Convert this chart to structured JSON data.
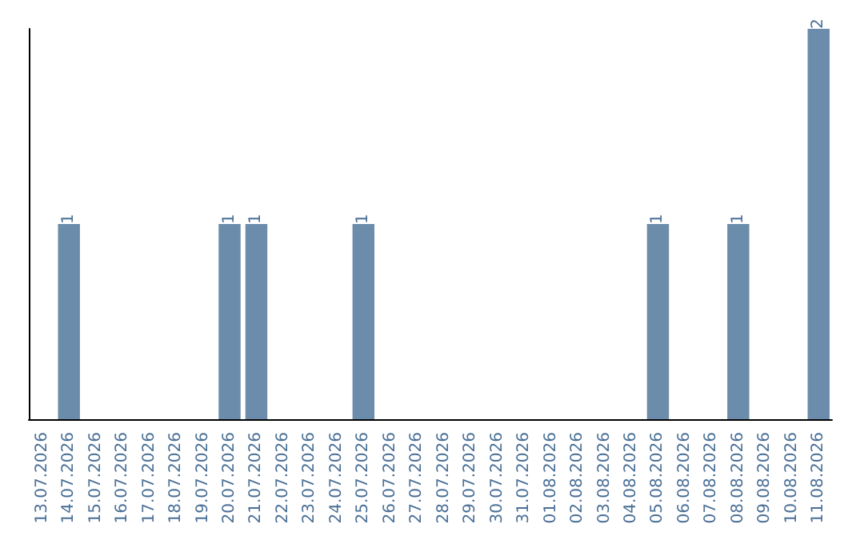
{
  "chart_data": {
    "type": "bar",
    "categories": [
      "13.07.2026",
      "14.07.2026",
      "15.07.2026",
      "16.07.2026",
      "17.07.2026",
      "18.07.2026",
      "19.07.2026",
      "20.07.2026",
      "21.07.2026",
      "22.07.2026",
      "23.07.2026",
      "24.07.2026",
      "25.07.2026",
      "26.07.2026",
      "27.07.2026",
      "28.07.2026",
      "29.07.2026",
      "30.07.2026",
      "31.07.2026",
      "01.08.2026",
      "02.08.2026",
      "03.08.2026",
      "04.08.2026",
      "05.08.2026",
      "06.08.2026",
      "07.08.2026",
      "08.08.2026",
      "09.08.2026",
      "10.08.2026",
      "11.08.2026"
    ],
    "values": [
      0,
      1,
      0,
      0,
      0,
      0,
      0,
      1,
      1,
      0,
      0,
      0,
      1,
      0,
      0,
      0,
      0,
      0,
      0,
      0,
      0,
      0,
      0,
      1,
      0,
      0,
      1,
      0,
      0,
      2
    ],
    "value_labels": [
      null,
      "1",
      null,
      null,
      null,
      null,
      null,
      "1",
      "1",
      null,
      null,
      null,
      "1",
      null,
      null,
      null,
      null,
      null,
      null,
      null,
      null,
      null,
      null,
      "1",
      null,
      null,
      "1",
      null,
      null,
      "2"
    ],
    "color": "#6b8cab",
    "tick_labels": "x"
  }
}
